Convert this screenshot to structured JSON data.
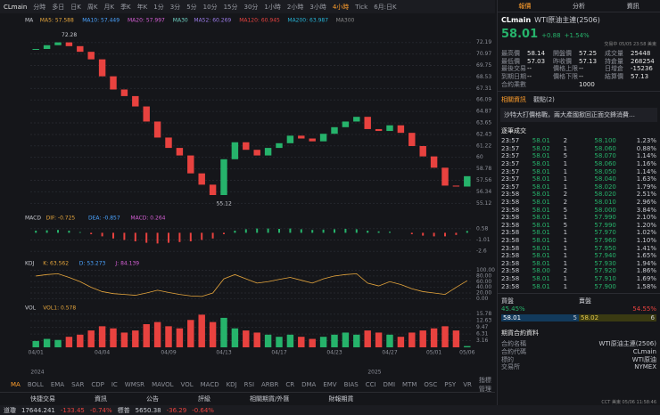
{
  "toolbar": {
    "symbol": "CLmain",
    "periods": [
      "分時",
      "多日",
      "日K",
      "周K",
      "月K",
      "季K",
      "年K",
      "1分",
      "3分",
      "5分",
      "10分",
      "15分",
      "30分",
      "1小時",
      "2小時",
      "3小時",
      "4小時",
      "Tick",
      "6月:日K"
    ],
    "selected": "4小時"
  },
  "chart_data": {
    "type": "candlestick",
    "ma_legend": [
      "MA",
      "MA5: 57.588",
      "MA10: 57.449",
      "MA20: 57.997",
      "MA30",
      "MA52: 60.269",
      "MA120: 60.945",
      "MA200: 63.987",
      "MA300"
    ],
    "high_label": "72.28",
    "low_label": "55.12",
    "up_color": "#26b36b",
    "down_color": "#e8423f",
    "categories": [
      "04/01",
      null,
      null,
      null,
      null,
      null,
      "04/04",
      null,
      null,
      null,
      null,
      null,
      "04/09",
      null,
      null,
      null,
      null,
      "04/13",
      null,
      null,
      null,
      null,
      "04/17",
      null,
      null,
      null,
      null,
      "04/23",
      null,
      null,
      null,
      null,
      "04/27",
      null,
      null,
      null,
      "05/01",
      null,
      null,
      "05/06"
    ],
    "years": [
      "2024",
      "2025"
    ],
    "values": [
      71.5,
      71.9,
      72.2,
      71.8,
      71.2,
      70.4,
      68.6,
      67.2,
      66.5,
      65.4,
      63.8,
      62.1,
      61.0,
      60.2,
      58.3,
      57.1,
      56.0,
      59.8,
      61.6,
      60.8,
      60.2,
      61.0,
      61.5,
      62.3,
      62.0,
      61.7,
      62.5,
      63.2,
      63.8,
      64.3,
      63.0,
      62.8,
      63.4,
      62.6,
      61.2,
      60.1,
      58.9,
      57.0,
      56.9,
      58.0
    ],
    "ylim": [
      54.3,
      73.2
    ],
    "yticks": [
      72.19,
      70.97,
      69.75,
      68.53,
      67.31,
      66.09,
      64.87,
      63.65,
      62.43,
      61.22,
      60.0,
      58.78,
      57.56,
      56.34,
      55.12
    ],
    "macd": {
      "legend": [
        "MACD",
        "DIF: -0.725",
        "DEA: -0.857",
        "MACD: 0.264"
      ],
      "values": [
        0.3,
        0.35,
        0.4,
        0.3,
        0.1,
        -0.2,
        -0.5,
        -0.8,
        -1.0,
        -1.2,
        -1.4,
        -1.5,
        -1.4,
        -1.3,
        -1.2,
        -1.0,
        -0.8,
        -0.2,
        0.3,
        0.5,
        0.6,
        0.6,
        0.55,
        0.6,
        0.5,
        0.4,
        0.45,
        0.5,
        0.55,
        0.5,
        0.3,
        0.2,
        0.15,
        0.0,
        -0.2,
        -0.4,
        -0.5,
        -0.5,
        -0.3,
        0.26
      ],
      "ylim": [
        -3.2,
        1.3
      ],
      "yticks": [
        0.58,
        -1.01,
        -2.6
      ]
    },
    "kdj": {
      "legend": [
        "KDJ",
        "K: 63.562",
        "D: 53.273",
        "J: 84.139"
      ],
      "values": [
        80,
        85,
        88,
        75,
        60,
        40,
        25,
        18,
        15,
        12,
        20,
        30,
        22,
        15,
        10,
        8,
        20,
        70,
        85,
        70,
        55,
        60,
        68,
        75,
        65,
        55,
        70,
        80,
        85,
        88,
        55,
        45,
        60,
        50,
        35,
        25,
        20,
        15,
        40,
        63.562
      ],
      "ylim": [
        -5,
        108
      ],
      "yticks": [
        {
          "value": 100,
          "label": "100.00"
        },
        {
          "value": 80,
          "label": "80.00"
        },
        {
          "value": 60,
          "label": "60.00"
        },
        {
          "value": 40,
          "label": "40.00"
        },
        {
          "value": 20,
          "label": "20.00"
        },
        {
          "value": 0,
          "label": "0.00"
        }
      ],
      "color": "#e5a53c"
    },
    "vol": {
      "legend": [
        "VOL",
        "VOL1: 0.578"
      ],
      "values": [
        3,
        4,
        3.5,
        5,
        6,
        8,
        10,
        9,
        7,
        8,
        11,
        12,
        10,
        9,
        13,
        15.5,
        12,
        14,
        9,
        8,
        7,
        6,
        5,
        6,
        5,
        4,
        5,
        6,
        7,
        6,
        8,
        7,
        6,
        5,
        7,
        8,
        9,
        10,
        8,
        0.578
      ],
      "ylim": [
        0,
        16.5
      ],
      "yticks": [
        15.78,
        12.63,
        9.47,
        6.31,
        3.16
      ]
    }
  },
  "indicators": [
    "MA",
    "BOLL",
    "EMA",
    "SAR",
    "CDP",
    "IC",
    "WMSR",
    "MAVOL",
    "VOL",
    "MACD",
    "KDJ",
    "RSI",
    "ARBR",
    "CR",
    "DMA",
    "EMV",
    "BIAS",
    "CCI",
    "DMI",
    "MTM",
    "OSC",
    "PSY",
    "VR",
    "指標管理"
  ],
  "bottom_tabs": [
    "快捷交易",
    "資訊",
    "公告",
    "評級",
    "相關期貨/外匯",
    "財報期貨"
  ],
  "status": [
    "道瓊",
    "17644.241",
    "-133.45",
    "-0.74%",
    "標普",
    "5650.38",
    "-36.29",
    "-0.64%"
  ],
  "panel": {
    "tabs": [
      "報價",
      "分析",
      "資訊"
    ],
    "symbol": "CLmain",
    "name": "WTI原油主連(2506)",
    "price": "58.01",
    "change": "+0.88",
    "pct": "+1.54%",
    "state": "交易中 05/05 23:58 美東",
    "stats": [
      [
        "最高價",
        "58.14",
        "開盤價",
        "57.25",
        "成交量",
        "25448"
      ],
      [
        "最低價",
        "57.03",
        "昨收價",
        "57.13",
        "持倉量",
        "268254"
      ],
      [
        "最後交易",
        "--",
        "價格上限",
        "--",
        "日增倉",
        "-15236"
      ],
      [
        "到期日期",
        "--",
        "價格下限",
        "--",
        "結算價",
        "57.13"
      ],
      [
        "合約乘數",
        "1000"
      ]
    ],
    "news_tabs": [
      "相關資訊",
      "觀點(2)"
    ],
    "news": "沙特大打價格戰，兩大產國掀回正面交鋒消費…",
    "trades_title": "逐筆成交",
    "trades": [
      [
        "23:57",
        "58.01",
        "2",
        "58.100",
        "1.23%"
      ],
      [
        "23:57",
        "58.02",
        "1",
        "58.060",
        "0.88%"
      ],
      [
        "23:57",
        "58.01",
        "5",
        "58.070",
        "1.14%"
      ],
      [
        "23:57",
        "58.01",
        "1",
        "58.060",
        "1.16%"
      ],
      [
        "23:57",
        "58.01",
        "1",
        "58.050",
        "1.14%"
      ],
      [
        "23:57",
        "58.01",
        "1",
        "58.040",
        "1.63%"
      ],
      [
        "23:57",
        "58.01",
        "1",
        "58.020",
        "1.79%"
      ],
      [
        "23:58",
        "58.01",
        "2",
        "58.020",
        "2.51%"
      ],
      [
        "23:58",
        "58.01",
        "2",
        "58.010",
        "2.96%"
      ],
      [
        "23:58",
        "58.01",
        "5",
        "58.000",
        "3.84%"
      ],
      [
        "23:58",
        "58.01",
        "1",
        "57.990",
        "2.10%"
      ],
      [
        "23:58",
        "58.01",
        "5",
        "57.990",
        "1.20%"
      ],
      [
        "23:58",
        "58.01",
        "1",
        "57.970",
        "1.02%"
      ],
      [
        "23:58",
        "58.01",
        "1",
        "57.960",
        "1.10%"
      ],
      [
        "23:58",
        "58.01",
        "1",
        "57.950",
        "1.41%"
      ],
      [
        "23:58",
        "58.01",
        "1",
        "57.940",
        "1.65%"
      ],
      [
        "23:58",
        "58.01",
        "1",
        "57.930",
        "1.94%"
      ],
      [
        "23:58",
        "58.00",
        "2",
        "57.920",
        "1.86%"
      ],
      [
        "23:58",
        "58.01",
        "1",
        "57.910",
        "1.69%"
      ],
      [
        "23:58",
        "58.01",
        "1",
        "57.900",
        "1.58%"
      ]
    ],
    "book": {
      "bid_label": "買盤",
      "ask_label": "賣盤",
      "bid_pct": "45.45%",
      "ask_pct": "54.55%",
      "bid": "58.01",
      "bid_qty": "5",
      "ask": "58.02",
      "ask_qty": "6"
    },
    "contract_title": "期貨合約資料",
    "contract": [
      [
        "合約名稱",
        "WTI原油主連(2506)"
      ],
      [
        "合約代碼",
        "CLmain"
      ],
      [
        "標的",
        "WTI原油"
      ],
      [
        "交易所",
        "NYMEX"
      ]
    ],
    "clock": "CCT 美東 05/06 11:58:46"
  }
}
